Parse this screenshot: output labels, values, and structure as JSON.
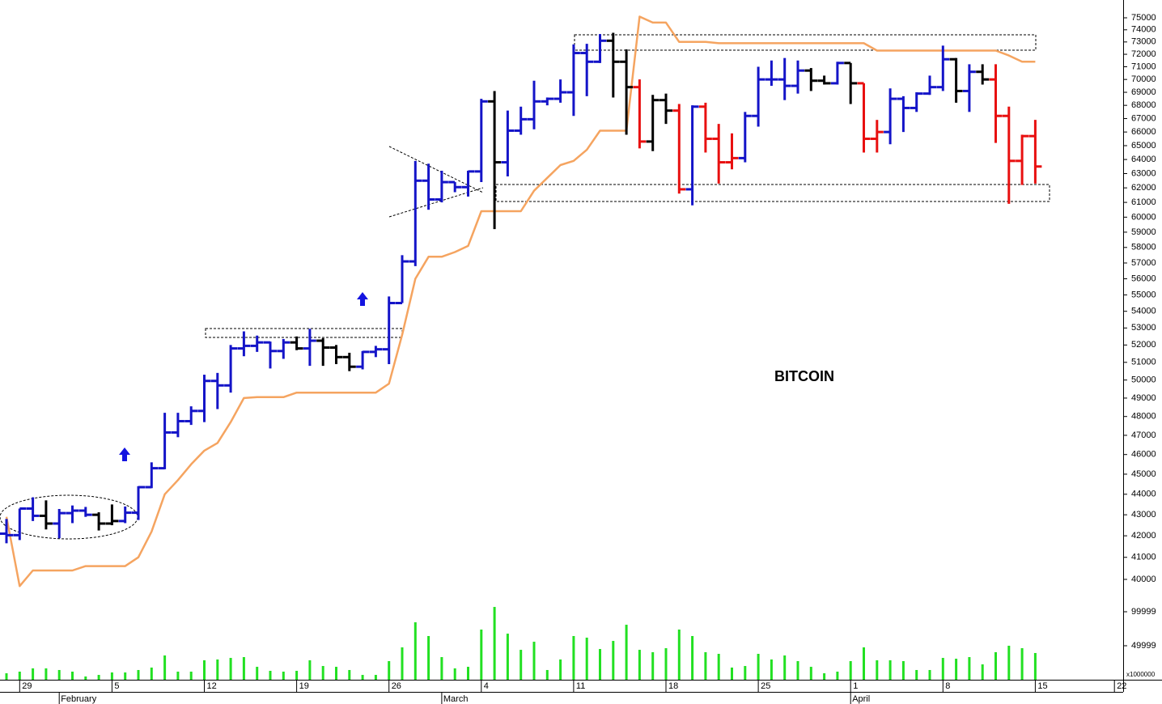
{
  "chart_data": {
    "type": "ohlc",
    "annotation": "BITCOIN",
    "log_scale": true,
    "ylim": [
      40000,
      75000
    ],
    "yticks": [
      40000,
      41000,
      42000,
      43000,
      44000,
      45000,
      46000,
      47000,
      48000,
      49000,
      50000,
      51000,
      52000,
      53000,
      54000,
      55000,
      56000,
      57000,
      58000,
      59000,
      60000,
      61000,
      62000,
      63000,
      64000,
      65000,
      66000,
      67000,
      68000,
      69000,
      70000,
      71000,
      72000,
      73000,
      74000,
      75000
    ],
    "categories": [
      null,
      "29",
      null,
      null,
      null,
      null,
      null,
      null,
      "5",
      null,
      null,
      null,
      null,
      null,
      null,
      "12",
      null,
      null,
      null,
      null,
      null,
      null,
      "19",
      null,
      null,
      null,
      null,
      null,
      null,
      "26",
      null,
      null,
      null,
      null,
      null,
      null,
      "4",
      null,
      null,
      null,
      null,
      null,
      null,
      "11",
      null,
      null,
      null,
      null,
      null,
      null,
      "18",
      null,
      null,
      null,
      null,
      null,
      null,
      "25",
      null,
      null,
      null,
      null,
      null,
      null,
      "1",
      null,
      null,
      null,
      null,
      null,
      null,
      "8",
      null,
      null,
      null,
      null,
      null,
      null,
      "15",
      null,
      null,
      null,
      null,
      null,
      "22"
    ],
    "month_labels": [
      {
        "label": "February",
        "at": 4
      },
      {
        "label": "March",
        "at": 33
      },
      {
        "label": "April",
        "at": 64
      }
    ],
    "open": [
      42100,
      42030,
      43300,
      42950,
      42580,
      43080,
      43200,
      43000,
      42580,
      42700,
      43100,
      44350,
      45300,
      47150,
      47750,
      48300,
      49950,
      49700,
      51800,
      51950,
      52150,
      51650,
      52150,
      51800,
      52250,
      51850,
      51300,
      50750,
      51600,
      51750,
      54500,
      57100,
      62500,
      61200,
      62400,
      62050,
      63150,
      68300,
      63800,
      66100,
      66950,
      68300,
      68500,
      69000,
      72100,
      71400,
      73100,
      71400,
      69400,
      65300,
      68400,
      67600,
      61900,
      67900,
      65500,
      63800,
      64100,
      67200,
      70000,
      70000,
      69500,
      70700,
      69900,
      69700,
      71300,
      69700,
      65500,
      66000,
      68500,
      67800,
      68900,
      69400,
      71600,
      69100,
      70600,
      70000,
      67200,
      63900,
      65700,
      null,
      null,
      null,
      null,
      null,
      null
    ],
    "high": [
      42800,
      43300,
      43850,
      43700,
      43280,
      43450,
      43380,
      43120,
      43500,
      43400,
      44400,
      45600,
      48200,
      48200,
      48550,
      50300,
      50400,
      52000,
      52800,
      52550,
      52200,
      52350,
      52500,
      52950,
      52400,
      52000,
      51550,
      51650,
      51950,
      54900,
      57500,
      63900,
      63700,
      63200,
      62400,
      63200,
      68500,
      69100,
      67600,
      67900,
      69900,
      68600,
      70000,
      72800,
      72850,
      73650,
      73750,
      72400,
      70000,
      68800,
      68900,
      68100,
      68000,
      68200,
      66600,
      65900,
      67500,
      71000,
      71500,
      71700,
      71500,
      70900,
      70300,
      71400,
      71300,
      69700,
      66900,
      69300,
      68700,
      69000,
      70300,
      72700,
      71700,
      71200,
      71200,
      71200,
      67900,
      65800,
      66900,
      null,
      null,
      null,
      null,
      null,
      null
    ],
    "low": [
      41650,
      41800,
      42700,
      42300,
      41880,
      42600,
      42900,
      42250,
      42500,
      42600,
      42750,
      44300,
      45250,
      46900,
      47550,
      47700,
      48400,
      49300,
      51350,
      51600,
      50650,
      51200,
      51700,
      50800,
      50800,
      50900,
      50500,
      50600,
      51300,
      50900,
      54500,
      56800,
      60500,
      61000,
      61700,
      61400,
      62400,
      59200,
      62800,
      65800,
      66200,
      68000,
      68200,
      67200,
      68700,
      71300,
      68600,
      65800,
      64800,
      64600,
      66600,
      61600,
      60800,
      64500,
      62300,
      63300,
      63800,
      66400,
      69500,
      68400,
      68900,
      69100,
      69600,
      69600,
      68100,
      64500,
      64500,
      65100,
      66000,
      67500,
      68800,
      69100,
      68200,
      67500,
      69600,
      65200,
      60900,
      62200,
      62300,
      null,
      null,
      null,
      null,
      null,
      null
    ],
    "close": [
      42030,
      43300,
      42950,
      42580,
      43080,
      43200,
      43000,
      42580,
      42700,
      43100,
      44350,
      45300,
      47150,
      47750,
      48300,
      49950,
      49700,
      51800,
      51950,
      52150,
      51650,
      52150,
      51800,
      52250,
      51850,
      51300,
      50750,
      51600,
      51750,
      54500,
      57100,
      62500,
      61200,
      62400,
      62050,
      63150,
      68300,
      63800,
      66100,
      66950,
      68300,
      68500,
      69000,
      72100,
      71400,
      73100,
      71400,
      69400,
      65300,
      68400,
      67600,
      61900,
      67900,
      65500,
      63800,
      64100,
      67200,
      70000,
      70000,
      69500,
      70700,
      69900,
      69700,
      71300,
      69700,
      65500,
      66000,
      68500,
      67800,
      68900,
      69400,
      71600,
      69100,
      70600,
      70000,
      67200,
      63900,
      65700,
      63500,
      null,
      null,
      null,
      null,
      null,
      null
    ],
    "bar_colors": [
      "#1414c8",
      "#1414c8",
      "#1414c8",
      "#000000",
      "#1414c8",
      "#1414c8",
      "#1414c8",
      "#000000",
      "#000000",
      "#1414c8",
      "#1414c8",
      "#1414c8",
      "#1414c8",
      "#1414c8",
      "#1414c8",
      "#1414c8",
      "#1414c8",
      "#1414c8",
      "#1414c8",
      "#1414c8",
      "#1414c8",
      "#1414c8",
      "#000000",
      "#1414c8",
      "#000000",
      "#000000",
      "#000000",
      "#1414c8",
      "#1414c8",
      "#1414c8",
      "#1414c8",
      "#1414c8",
      "#1414c8",
      "#1414c8",
      "#1414c8",
      "#1414c8",
      "#1414c8",
      "#000000",
      "#1414c8",
      "#1414c8",
      "#1414c8",
      "#1414c8",
      "#1414c8",
      "#1414c8",
      "#1414c8",
      "#1414c8",
      "#000000",
      "#000000",
      "#e81010",
      "#000000",
      "#000000",
      "#e81010",
      "#1414c8",
      "#e81010",
      "#e81010",
      "#e81010",
      "#1414c8",
      "#1414c8",
      "#1414c8",
      "#1414c8",
      "#1414c8",
      "#000000",
      "#000000",
      "#1414c8",
      "#000000",
      "#e81010",
      "#e81010",
      "#1414c8",
      "#1414c8",
      "#1414c8",
      "#1414c8",
      "#1414c8",
      "#000000",
      "#1414c8",
      "#000000",
      "#e81010",
      "#e81010",
      "#e81010",
      "#e81010",
      null,
      null,
      null,
      null,
      null,
      null
    ],
    "line": {
      "color": "#f5a460",
      "values": [
        42900,
        39700,
        40400,
        40400,
        40400,
        40400,
        40600,
        40600,
        40600,
        40600,
        41000,
        42200,
        44000,
        44700,
        45500,
        46200,
        46600,
        47700,
        49000,
        49050,
        49050,
        49050,
        49300,
        49300,
        49300,
        49300,
        49300,
        49300,
        49300,
        49800,
        52600,
        56000,
        57400,
        57400,
        57700,
        58100,
        60400,
        60400,
        60400,
        60400,
        61800,
        62700,
        63600,
        63900,
        64700,
        66100,
        66100,
        66100,
        75100,
        74600,
        74600,
        73000,
        73000,
        73000,
        72900,
        72900,
        72900,
        72900,
        72900,
        72900,
        72900,
        72900,
        72900,
        72900,
        72900,
        72900,
        72300,
        72300,
        72300,
        72300,
        72300,
        72300,
        72300,
        72300,
        72300,
        72300,
        71900,
        71400,
        71400,
        null,
        null,
        null,
        null,
        null,
        null
      ]
    },
    "volume": {
      "color": "#22e022",
      "unit_label": "x1000000",
      "ylim": [
        0,
        110000
      ],
      "yticks": [
        49999,
        99999
      ],
      "values": [
        9500,
        11900,
        16700,
        16700,
        14300,
        11900,
        4800,
        7100,
        10700,
        10700,
        14300,
        17900,
        35700,
        11900,
        11900,
        28600,
        29800,
        32100,
        33300,
        19000,
        13100,
        11900,
        13100,
        28600,
        20200,
        19000,
        14300,
        7100,
        7100,
        27400,
        47600,
        84500,
        64300,
        33300,
        16700,
        19000,
        73800,
        107100,
        67800,
        44000,
        55900,
        14300,
        29800,
        64300,
        61900,
        45200,
        57100,
        80900,
        44000,
        40500,
        46400,
        73800,
        64300,
        40500,
        38100,
        17900,
        20200,
        38100,
        29800,
        35700,
        27400,
        19000,
        9500,
        11900,
        27400,
        47600,
        28600,
        28600,
        27400,
        14300,
        14300,
        32100,
        30900,
        33300,
        22600,
        40500,
        50000,
        46400,
        39300,
        null,
        null,
        null,
        null,
        null,
        null
      ]
    }
  }
}
